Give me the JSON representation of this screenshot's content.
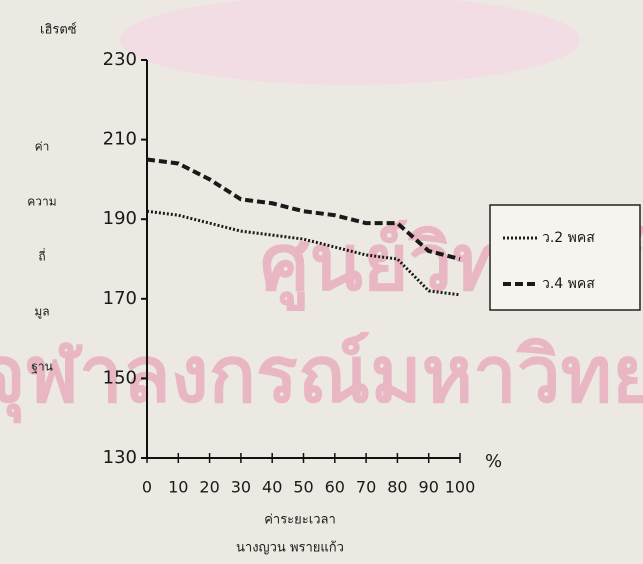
{
  "chart_data": {
    "type": "line",
    "y_unit_label": "เฮิรตซ์",
    "y_label": [
      "ค่า",
      "ความ",
      "ถี่",
      "มูล",
      "ฐาน"
    ],
    "x_label": "ค่าระยะเวลา",
    "x_unit_label": "%",
    "author": "นางญวน พรายแก้ว",
    "watermark": [
      "ศูนย์วิทยทรัพยากร",
      "จุฬาลงกรณ์มหาวิทยาลัย"
    ],
    "x": [
      0,
      10,
      20,
      30,
      40,
      50,
      60,
      70,
      80,
      90,
      100
    ],
    "series": [
      {
        "name": "ว.2 พคส",
        "color": "#1a1a1a",
        "style": "dotted",
        "values": [
          192,
          191,
          189,
          187,
          186,
          185,
          183,
          181,
          180,
          172,
          171
        ]
      },
      {
        "name": "ว.4 พคส",
        "color": "#1a1a1a",
        "style": "dashed",
        "values": [
          205,
          204,
          200,
          195,
          194,
          192,
          191,
          189,
          189,
          182,
          180
        ]
      }
    ],
    "xlim": [
      0,
      100
    ],
    "xticks": [
      0,
      10,
      20,
      30,
      40,
      50,
      60,
      70,
      80,
      90,
      100
    ],
    "ylim": [
      130,
      230
    ],
    "yticks": [
      130,
      150,
      170,
      190,
      210,
      230
    ],
    "legend": "right"
  }
}
